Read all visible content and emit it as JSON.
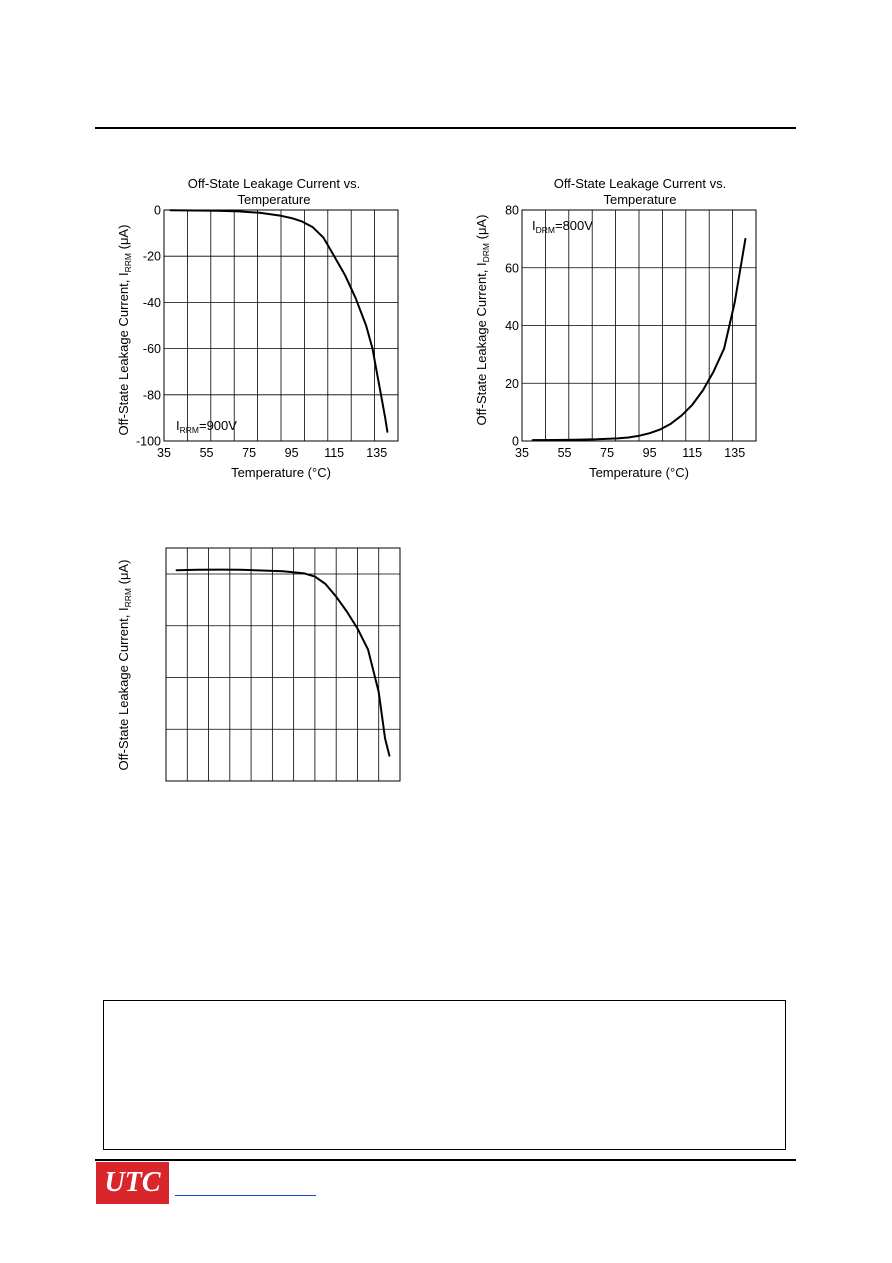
{
  "page": {
    "logo_text": "UTC",
    "logo_color": "#d8262b",
    "link_color": "#1a3fd6"
  },
  "chart_data": [
    {
      "type": "line",
      "title": "Off-State Leakage Current vs.",
      "subtitle": "Temperature",
      "xlabel": "Temperature (°C)",
      "ylabel_pre": "Off-State Leakage Current, I",
      "ylabel_sub": "RRM",
      "ylabel_post": " (μA)",
      "annotation_pre": "I",
      "annotation_sub": "RRM",
      "annotation_post": "=900V",
      "xlim": [
        35,
        145
      ],
      "ylim": [
        -100,
        0
      ],
      "x_ticks": [
        "35",
        "55",
        "75",
        "95",
        "115",
        "135"
      ],
      "y_ticks": [
        "0",
        "-20",
        "-40",
        "-60",
        "-80",
        "-100"
      ],
      "grid": true,
      "series": [
        {
          "x": [
            38,
            50,
            60,
            70,
            80,
            90,
            95,
            100,
            105,
            110,
            115,
            120,
            125,
            130,
            133,
            135,
            137,
            139,
            140
          ],
          "y": [
            -0.1,
            -0.2,
            -0.3,
            -0.6,
            -1.2,
            -2.5,
            -3.5,
            -5,
            -7.5,
            -12,
            -20,
            -28,
            -38,
            -50,
            -60,
            -70,
            -80,
            -90,
            -96
          ]
        }
      ]
    },
    {
      "type": "line",
      "title": "Off-State Leakage Current vs.",
      "subtitle": "Temperature",
      "xlabel": "Temperature (°C)",
      "ylabel_pre": "Off-State Leakage Current, I",
      "ylabel_sub": "DRM",
      "ylabel_post": " (μA)",
      "annotation_pre": "I",
      "annotation_sub": "DRM",
      "annotation_post": "=800V",
      "xlim": [
        35,
        145
      ],
      "ylim": [
        0,
        80
      ],
      "x_ticks": [
        "35",
        "55",
        "75",
        "95",
        "115",
        "135"
      ],
      "y_ticks": [
        "0",
        "20",
        "40",
        "60",
        "80"
      ],
      "grid": true,
      "series": [
        {
          "x": [
            40,
            50,
            60,
            70,
            80,
            85,
            90,
            95,
            100,
            105,
            110,
            115,
            120,
            125,
            130,
            135,
            140
          ],
          "y": [
            0.3,
            0.35,
            0.45,
            0.6,
            0.9,
            1.2,
            1.8,
            2.7,
            4,
            6,
            8.8,
            12.5,
            17.5,
            24,
            32,
            48,
            70
          ]
        }
      ]
    },
    {
      "type": "line",
      "title": "",
      "xlabel": "",
      "ylabel_pre": "Off-State Leakage Current, I",
      "ylabel_sub": "RRM",
      "ylabel_post": " (μA)",
      "xlim": [
        35,
        145
      ],
      "ylim": [
        -100,
        10
      ],
      "x_ticks": [],
      "y_ticks": [],
      "grid": true,
      "series": [
        {
          "x": [
            40,
            50,
            60,
            70,
            80,
            90,
            100,
            105,
            110,
            115,
            120,
            125,
            130,
            135,
            138,
            140
          ],
          "y": [
            -0.5,
            -0.3,
            -0.2,
            -0.3,
            -0.6,
            -1,
            -2,
            -3.5,
            -7,
            -13,
            -20,
            -28,
            -38,
            -58,
            -80,
            -88
          ]
        }
      ]
    }
  ]
}
